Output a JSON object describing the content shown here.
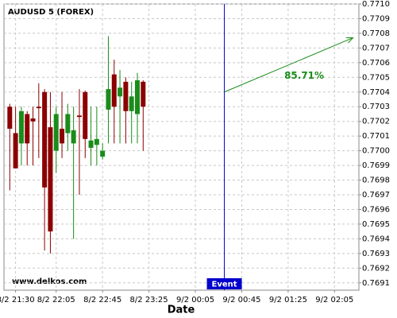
{
  "chart_data": {
    "type": "candlestick",
    "title": "AUDUSD 5 (FOREX)",
    "watermark": "www.delkos.com",
    "x_label": "Date",
    "x": [
      1285,
      1290,
      1295,
      1300,
      1305,
      1310,
      1315,
      1320,
      1325,
      1330,
      1335,
      1340,
      1345,
      1350,
      1355,
      1360,
      1365,
      1370,
      1375,
      1380,
      1385,
      1390,
      1395,
      1400
    ],
    "open": [
      0.7703,
      0.77012,
      0.77005,
      0.77025,
      0.77022,
      0.7703,
      0.7704,
      0.77016,
      0.77,
      0.77015,
      0.77012,
      0.77005,
      0.77024,
      0.7704,
      0.77002,
      0.77004,
      0.76996,
      0.77028,
      0.77052,
      0.77037,
      0.77047,
      0.77027,
      0.77025,
      0.77047
    ],
    "high": [
      0.77032,
      0.7703,
      0.7703,
      0.77027,
      0.7703,
      0.77046,
      0.77042,
      0.7704,
      0.7703,
      0.7704,
      0.77032,
      0.7703,
      0.77042,
      0.77041,
      0.7703,
      0.7703,
      0.77005,
      0.77078,
      0.77062,
      0.77055,
      0.7705,
      0.77047,
      0.77053,
      0.77048
    ],
    "low": [
      0.76973,
      0.76988,
      0.7699,
      0.7699,
      0.7699,
      0.76995,
      0.76932,
      0.7693,
      0.76985,
      0.76995,
      0.77,
      0.7694,
      0.7697,
      0.76995,
      0.7699,
      0.7699,
      0.76994,
      0.77005,
      0.77005,
      0.77005,
      0.77005,
      0.77005,
      0.77005,
      0.77
    ],
    "close": [
      0.77015,
      0.76988,
      0.77027,
      0.77005,
      0.7702,
      0.77029,
      0.76975,
      0.76945,
      0.77025,
      0.77005,
      0.77025,
      0.77014,
      0.77023,
      0.77008,
      0.77007,
      0.77008,
      0.77,
      0.77042,
      0.7703,
      0.77043,
      0.77027,
      0.77037,
      0.77048,
      0.7703
    ],
    "up_color": "#1a8c1a",
    "down_color": "#8b0000",
    "xlim": [
      1280,
      1586
    ],
    "ylim": [
      0.76905,
      0.771
    ],
    "xticks": [
      {
        "value": 1290,
        "label": "8/2 21:30"
      },
      {
        "value": 1325,
        "label": "8/2 22:05"
      },
      {
        "value": 1365,
        "label": "8/2 22:45"
      },
      {
        "value": 1405,
        "label": "8/2 23:25"
      },
      {
        "value": 1445,
        "label": "9/2 00:05"
      },
      {
        "value": 1485,
        "label": "9/2 00:45"
      },
      {
        "value": 1525,
        "label": "9/2 01:25"
      },
      {
        "value": 1565,
        "label": "9/2 02:05"
      }
    ],
    "yticks": [
      0.7691,
      0.7692,
      0.7693,
      0.7694,
      0.7695,
      0.7696,
      0.7697,
      0.7698,
      0.7699,
      {
        "value": 0.77,
        "label": "0.7700"
      },
      0.7701,
      0.7702,
      0.7703,
      0.7704,
      0.7705,
      0.7706,
      0.7707,
      0.7708,
      0.7709,
      {
        "value": 0.771,
        "label": "0.7710"
      }
    ],
    "grid": true,
    "event": {
      "x": 1470,
      "label": "Event",
      "color": "#0000cc"
    },
    "arrow": {
      "x": [
        1470,
        1581
      ],
      "y": [
        0.7704,
        0.77077
      ],
      "label": "85.71%",
      "color": "#1a8c1a"
    }
  }
}
